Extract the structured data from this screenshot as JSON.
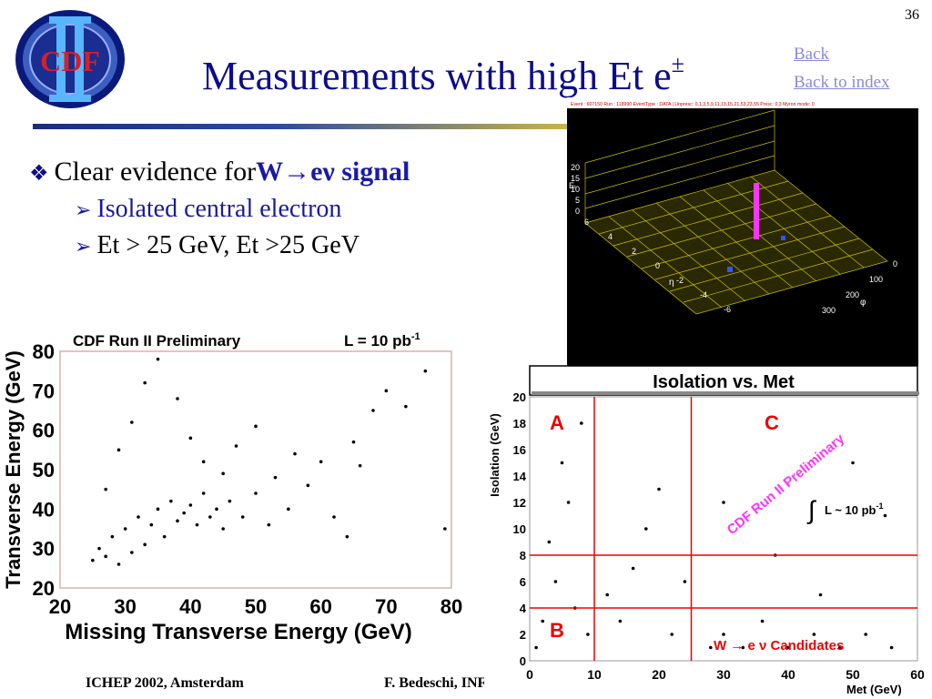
{
  "slide": {
    "page_number": "36",
    "title": "Measurements with high Et e",
    "title_sup": "±",
    "nav": {
      "back": "Back",
      "back_to_index": "Back to index"
    },
    "logo_text": "CDF",
    "bullet1": {
      "prefix": "Clear evidence for ",
      "highlight": "W",
      "arrow": "→",
      "highlight2": " eν signal"
    },
    "bullet2": "Isolated central electron",
    "bullet3": "Et > 25 GeV, Et >25 GeV",
    "footer_left": "ICHEP 2002, Amsterdam",
    "footer_mid": "F. Bedeschi, INFN"
  },
  "event_display": {
    "header": "Event : 607150   Run : 118990   EventType : DATA | Unpresc: 0,1,3,5,9,11,13,15,21,53,23,55  Presc: 0,3 Myron mode: 0",
    "z_ticks": [
      "20",
      "15",
      "10",
      "5",
      "0"
    ],
    "z_label": "Eₜ",
    "eta_ticks": [
      "6",
      "4",
      "2",
      "0",
      "-2",
      "-4",
      "-6"
    ],
    "eta_label": "η",
    "phi_ticks": [
      "0",
      "100",
      "200",
      "300"
    ],
    "phi_label": "φ"
  },
  "chart_data": [
    {
      "type": "scatter",
      "title": "CDF Run II Preliminary",
      "luminosity": "L = 10 pb",
      "luminosity_sup": "-1",
      "xlabel": "Missing Transverse Energy (GeV)",
      "ylabel": "Transverse Energy (GeV)",
      "xlim": [
        20,
        80
      ],
      "ylim": [
        20,
        80
      ],
      "xticks": [
        "20",
        "30",
        "40",
        "50",
        "60",
        "70",
        "80"
      ],
      "yticks": [
        "20",
        "30",
        "40",
        "50",
        "60",
        "70",
        "80"
      ],
      "points": [
        [
          25,
          27
        ],
        [
          26,
          30
        ],
        [
          27,
          28
        ],
        [
          28,
          33
        ],
        [
          29,
          26
        ],
        [
          30,
          35
        ],
        [
          31,
          29
        ],
        [
          32,
          38
        ],
        [
          33,
          31
        ],
        [
          34,
          36
        ],
        [
          35,
          40
        ],
        [
          36,
          33
        ],
        [
          37,
          42
        ],
        [
          38,
          37
        ],
        [
          39,
          39
        ],
        [
          40,
          41
        ],
        [
          41,
          36
        ],
        [
          42,
          44
        ],
        [
          43,
          38
        ],
        [
          44,
          40
        ],
        [
          45,
          35
        ],
        [
          46,
          42
        ],
        [
          48,
          38
        ],
        [
          50,
          44
        ],
        [
          52,
          36
        ],
        [
          55,
          40
        ],
        [
          58,
          46
        ],
        [
          62,
          38
        ],
        [
          65,
          57
        ],
        [
          68,
          65
        ],
        [
          70,
          70
        ],
        [
          73,
          66
        ],
        [
          76,
          75
        ],
        [
          79,
          35
        ],
        [
          27,
          45
        ],
        [
          29,
          55
        ],
        [
          31,
          62
        ],
        [
          33,
          72
        ],
        [
          35,
          78
        ],
        [
          38,
          68
        ],
        [
          40,
          58
        ],
        [
          42,
          52
        ],
        [
          45,
          49
        ],
        [
          47,
          56
        ],
        [
          50,
          61
        ],
        [
          53,
          48
        ],
        [
          56,
          54
        ],
        [
          60,
          52
        ],
        [
          64,
          33
        ],
        [
          66,
          51
        ]
      ]
    },
    {
      "type": "scatter",
      "title": "Isolation vs. Met",
      "watermark": "CDF Run II Preliminary",
      "luminosity": "L ~ 10 pb",
      "luminosity_sup": "-1",
      "xlabel": "Met (GeV)",
      "ylabel": "Isolation (GeV)",
      "xlim": [
        0,
        60
      ],
      "ylim": [
        0,
        20
      ],
      "xticks": [
        "0",
        "10",
        "20",
        "30",
        "40",
        "50",
        "60"
      ],
      "yticks": [
        "0",
        "2",
        "4",
        "6",
        "8",
        "10",
        "12",
        "14",
        "16",
        "18",
        "20"
      ],
      "cut_lines": {
        "x": [
          10,
          25
        ],
        "y": [
          4,
          8
        ]
      },
      "regions": [
        "A",
        "B",
        "C"
      ],
      "candidates_label": "W → e ν Candidates",
      "points": [
        [
          2,
          3
        ],
        [
          4,
          6
        ],
        [
          6,
          12
        ],
        [
          8,
          18
        ],
        [
          3,
          9
        ],
        [
          5,
          15
        ],
        [
          7,
          4
        ],
        [
          9,
          2
        ],
        [
          1,
          1
        ],
        [
          12,
          5
        ],
        [
          14,
          3
        ],
        [
          16,
          7
        ],
        [
          18,
          10
        ],
        [
          20,
          13
        ],
        [
          22,
          2
        ],
        [
          24,
          6
        ],
        [
          28,
          1
        ],
        [
          30,
          2
        ],
        [
          33,
          1
        ],
        [
          36,
          3
        ],
        [
          40,
          1
        ],
        [
          44,
          2
        ],
        [
          48,
          1
        ],
        [
          52,
          2
        ],
        [
          56,
          1
        ],
        [
          30,
          12
        ],
        [
          38,
          8
        ],
        [
          45,
          5
        ],
        [
          50,
          15
        ],
        [
          55,
          11
        ]
      ]
    }
  ]
}
